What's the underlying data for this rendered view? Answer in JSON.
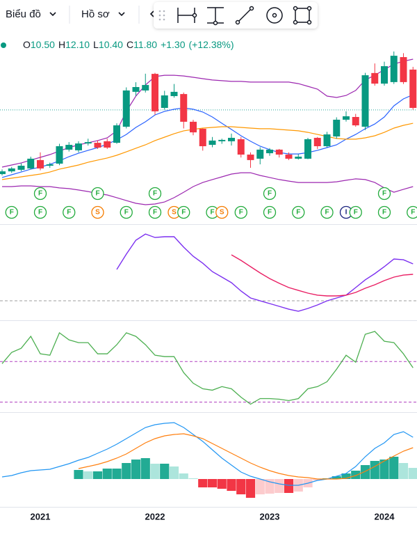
{
  "toolbar": {
    "menus": [
      "Biểu đồ",
      "Hồ sơ"
    ]
  },
  "chart_data": {
    "type": "candlestick",
    "legend": {
      "labels": [
        "O",
        "H",
        "L",
        "C"
      ],
      "values": [
        10.5,
        12.1,
        10.4,
        11.8
      ],
      "value_labels": [
        "10.50",
        "12.10",
        "10.40",
        "11.80"
      ],
      "change": "+1.30",
      "change_pct": "(+12.38%)"
    },
    "categories": [
      null,
      null,
      null,
      null,
      "2021",
      null,
      null,
      null,
      null,
      null,
      null,
      null,
      null,
      null,
      null,
      null,
      "2022",
      null,
      null,
      null,
      null,
      null,
      null,
      null,
      null,
      null,
      null,
      null,
      "2023",
      null,
      null,
      null,
      null,
      null,
      null,
      null,
      null,
      null,
      null,
      null,
      "2024",
      null,
      null,
      null
    ],
    "ohlc": [
      [
        4.93,
        5.2,
        4.85,
        5.09
      ],
      [
        5.09,
        5.35,
        5.0,
        5.26
      ],
      [
        5.18,
        5.55,
        5.1,
        5.42
      ],
      [
        5.26,
        5.95,
        5.2,
        5.83
      ],
      [
        5.75,
        6.2,
        5.15,
        5.26
      ],
      [
        5.42,
        5.6,
        5.3,
        5.5
      ],
      [
        5.54,
        6.7,
        5.45,
        6.56
      ],
      [
        6.36,
        6.8,
        6.25,
        6.64
      ],
      [
        6.32,
        6.85,
        6.2,
        6.72
      ],
      [
        6.72,
        7.0,
        6.6,
        6.8
      ],
      [
        6.76,
        6.9,
        6.4,
        6.48
      ],
      [
        6.85,
        7.0,
        6.4,
        6.48
      ],
      [
        6.76,
        7.9,
        6.7,
        7.78
      ],
      [
        7.7,
        10.0,
        7.6,
        9.82
      ],
      [
        9.74,
        10.3,
        9.5,
        10.02
      ],
      [
        9.82,
        10.8,
        9.7,
        10.14
      ],
      [
        10.79,
        10.85,
        8.4,
        8.6
      ],
      [
        8.8,
        9.8,
        8.7,
        9.53
      ],
      [
        9.49,
        10.2,
        9.4,
        9.74
      ],
      [
        9.61,
        9.7,
        7.6,
        7.99
      ],
      [
        7.99,
        8.1,
        7.2,
        7.37
      ],
      [
        7.58,
        7.6,
        6.3,
        6.56
      ],
      [
        6.64,
        7.1,
        6.5,
        6.89
      ],
      [
        6.85,
        7.0,
        6.7,
        6.93
      ],
      [
        6.85,
        7.3,
        6.6,
        7.05
      ],
      [
        6.97,
        7.1,
        5.9,
        6.07
      ],
      [
        6.07,
        6.2,
        5.3,
        5.75
      ],
      [
        5.83,
        6.5,
        5.5,
        6.36
      ],
      [
        6.15,
        6.45,
        6.0,
        6.36
      ],
      [
        6.36,
        6.4,
        5.9,
        6.07
      ],
      [
        6.07,
        6.2,
        5.75,
        5.83
      ],
      [
        5.83,
        6.1,
        5.78,
        5.95
      ],
      [
        5.83,
        7.05,
        5.8,
        6.97
      ],
      [
        7.05,
        7.1,
        6.4,
        6.56
      ],
      [
        6.56,
        7.4,
        6.5,
        7.25
      ],
      [
        7.13,
        8.25,
        7.0,
        8.11
      ],
      [
        8.11,
        8.6,
        8.0,
        8.31
      ],
      [
        8.27,
        8.45,
        7.7,
        7.78
      ],
      [
        7.7,
        10.85,
        7.5,
        10.71
      ],
      [
        10.84,
        11.4,
        10.1,
        10.22
      ],
      [
        10.22,
        11.5,
        10.1,
        11.24
      ],
      [
        10.31,
        12.1,
        10.2,
        11.85
      ],
      [
        11.77,
        12.0,
        10.2,
        10.31
      ],
      [
        11.04,
        11.2,
        8.7,
        8.8
      ]
    ],
    "up_color": "#089981",
    "down_color": "#f23645",
    "ylim": [
      2,
      13.4
    ],
    "price_line": 8.68,
    "price_line_color": "#26a69a",
    "bands": {
      "color": "#9c27b0",
      "upper": [
        5.34,
        5.46,
        5.58,
        5.75,
        5.91,
        6.07,
        6.28,
        6.48,
        6.64,
        6.76,
        6.89,
        7.05,
        7.46,
        8.6,
        9.49,
        10.14,
        10.63,
        10.71,
        10.71,
        10.67,
        10.59,
        10.51,
        10.43,
        10.39,
        10.35,
        10.35,
        10.31,
        10.31,
        10.31,
        10.31,
        10.31,
        10.22,
        10.06,
        9.9,
        9.49,
        9.41,
        9.53,
        9.82,
        10.43,
        10.71,
        11.04,
        11.36,
        11.53,
        11.65
      ],
      "lower": [
        4.2,
        4.2,
        4.24,
        4.24,
        4.2,
        4.2,
        4.12,
        4.08,
        4.0,
        3.91,
        3.79,
        3.71,
        3.55,
        3.38,
        3.22,
        3.14,
        3.18,
        3.3,
        3.55,
        3.87,
        4.2,
        4.44,
        4.61,
        4.77,
        4.93,
        5.01,
        5.01,
        4.85,
        4.73,
        4.61,
        4.52,
        4.44,
        4.44,
        4.44,
        4.44,
        4.48,
        4.57,
        4.65,
        4.61,
        4.44,
        4.12,
        3.87,
        4.04,
        4.2
      ]
    },
    "moving_averages": [
      {
        "color": "#2962ff",
        "values": [
          4.73,
          4.89,
          5.05,
          5.22,
          5.34,
          5.5,
          5.71,
          5.95,
          6.15,
          6.32,
          6.48,
          6.68,
          6.93,
          7.25,
          7.66,
          7.99,
          8.39,
          8.6,
          8.72,
          8.8,
          8.72,
          8.56,
          8.27,
          7.9,
          7.54,
          7.17,
          6.85,
          6.56,
          6.36,
          6.19,
          6.11,
          6.11,
          6.19,
          6.32,
          6.48,
          6.64,
          6.97,
          7.25,
          7.58,
          7.86,
          8.27,
          8.92,
          9.33,
          9.57
        ]
      },
      {
        "color": "#ff9800",
        "values": [
          4.61,
          4.69,
          4.77,
          4.85,
          4.93,
          5.05,
          5.22,
          5.34,
          5.46,
          5.62,
          5.75,
          5.87,
          6.03,
          6.23,
          6.44,
          6.64,
          6.89,
          7.09,
          7.29,
          7.46,
          7.54,
          7.62,
          7.66,
          7.7,
          7.7,
          7.66,
          7.62,
          7.58,
          7.58,
          7.54,
          7.5,
          7.46,
          7.37,
          7.25,
          7.13,
          7.01,
          6.97,
          6.97,
          7.05,
          7.17,
          7.37,
          7.62,
          7.78,
          7.9
        ]
      }
    ],
    "markers_upper": [
      null,
      null,
      null,
      null,
      "F",
      null,
      null,
      null,
      null,
      null,
      "F",
      null,
      null,
      null,
      null,
      null,
      "F",
      null,
      null,
      null,
      null,
      null,
      null,
      null,
      null,
      null,
      null,
      null,
      "F",
      null,
      null,
      null,
      null,
      null,
      null,
      null,
      null,
      null,
      null,
      null,
      "F",
      null,
      null,
      null
    ],
    "markers_lower": [
      null,
      "F",
      null,
      null,
      "F",
      null,
      null,
      "F",
      null,
      null,
      "S",
      null,
      null,
      "F",
      null,
      null,
      "F",
      null,
      "S",
      "F",
      null,
      null,
      "F",
      "S",
      null,
      "F",
      null,
      null,
      "F",
      null,
      null,
      "F",
      null,
      null,
      "F",
      null,
      "I",
      "F",
      null,
      null,
      "F",
      null,
      null,
      "F"
    ],
    "marker_colors": {
      "F": "#22ab3c",
      "S": "#f57c00",
      "I": "#1a237e"
    },
    "oscillator": {
      "ylim": [
        0,
        100
      ],
      "level": 17,
      "level_color": "#9e9e9e",
      "series": [
        {
          "color": "#7b2ff0",
          "values": [
            null,
            null,
            null,
            null,
            null,
            null,
            null,
            null,
            null,
            null,
            null,
            null,
            50.4,
            66.7,
            81.5,
            88.1,
            84.4,
            85.2,
            85.2,
            74.1,
            64.4,
            57.0,
            48.1,
            42.2,
            36.3,
            27.4,
            20.0,
            17.0,
            14.1,
            11.1,
            8.1,
            5.9,
            8.9,
            12.6,
            17.0,
            20.0,
            23.0,
            31.1,
            39.3,
            45.9,
            53.3,
            61.5,
            60.7,
            56.3
          ]
        },
        {
          "color": "#e91e63",
          "values": [
            null,
            null,
            null,
            null,
            null,
            null,
            null,
            null,
            null,
            null,
            null,
            null,
            null,
            null,
            null,
            null,
            null,
            null,
            null,
            null,
            null,
            null,
            null,
            null,
            65.9,
            60.0,
            53.3,
            46.7,
            40.7,
            35.6,
            31.1,
            28.1,
            25.2,
            23.0,
            22.2,
            22.2,
            23.0,
            25.9,
            30.4,
            34.1,
            38.5,
            42.2,
            44.4,
            45.2
          ]
        }
      ]
    },
    "rsi": {
      "ylim": [
        20,
        110
      ],
      "levels": [
        70,
        30
      ],
      "level_color": "#b040c0",
      "color": "#4caf50",
      "values": [
        67.9,
        79.0,
        83.1,
        94.8,
        77.6,
        76.2,
        98.3,
        91.4,
        88.6,
        88.6,
        77.6,
        77.6,
        86.6,
        98.3,
        94.8,
        86.6,
        76.2,
        74.8,
        74.8,
        59.0,
        48.6,
        43.1,
        41.7,
        45.2,
        43.1,
        34.8,
        27.9,
        33.4,
        33.4,
        32.8,
        31.4,
        33.4,
        43.1,
        45.2,
        50.0,
        62.4,
        76.2,
        69.3,
        96.9,
        99.7,
        90.0,
        88.6,
        77.6,
        63.8
      ]
    },
    "macd": {
      "ylim": [
        -2,
        4.6
      ],
      "macd_color": "#2196f3",
      "signal_color": "#ff7f0e",
      "hist_colors": [
        "#22ab94",
        "#ace5dc",
        "#f23645",
        "#fccbcd"
      ],
      "histogram": [
        null,
        null,
        null,
        null,
        null,
        null,
        null,
        null,
        0.65,
        0.55,
        0.55,
        0.75,
        0.75,
        1.15,
        1.4,
        1.5,
        1.1,
        1.1,
        0.9,
        0.4,
        0.05,
        -0.6,
        -0.6,
        -0.7,
        -0.85,
        -1.1,
        -1.35,
        -1.1,
        -1.05,
        -1.0,
        -1.0,
        -0.9,
        -0.6,
        -0.1,
        0.05,
        0.2,
        0.4,
        0.6,
        1.0,
        1.3,
        1.4,
        1.6,
        1.15,
        0.8
      ],
      "macd": [
        0.15,
        0.25,
        0.45,
        0.6,
        0.65,
        0.7,
        0.9,
        1.1,
        1.35,
        1.55,
        1.85,
        2.15,
        2.5,
        2.9,
        3.3,
        3.7,
        3.9,
        4.0,
        4.05,
        3.7,
        3.2,
        2.7,
        2.1,
        1.5,
        1.0,
        0.5,
        0.2,
        0,
        -0.2,
        -0.35,
        -0.45,
        -0.45,
        -0.3,
        -0.1,
        0,
        0.2,
        0.4,
        0.9,
        1.6,
        2.2,
        2.6,
        3.2,
        3.4,
        3.0
      ],
      "signal": [
        null,
        null,
        null,
        null,
        null,
        null,
        null,
        null,
        0.75,
        0.9,
        1.05,
        1.25,
        1.5,
        1.8,
        2.2,
        2.6,
        2.9,
        3.1,
        3.2,
        3.25,
        3.1,
        2.9,
        2.55,
        2.2,
        1.85,
        1.5,
        1.15,
        0.85,
        0.6,
        0.4,
        0.25,
        0.15,
        0.1,
        0,
        0,
        0,
        0.05,
        0.25,
        0.55,
        0.9,
        1.3,
        1.65,
        2.0,
        2.25
      ]
    }
  }
}
